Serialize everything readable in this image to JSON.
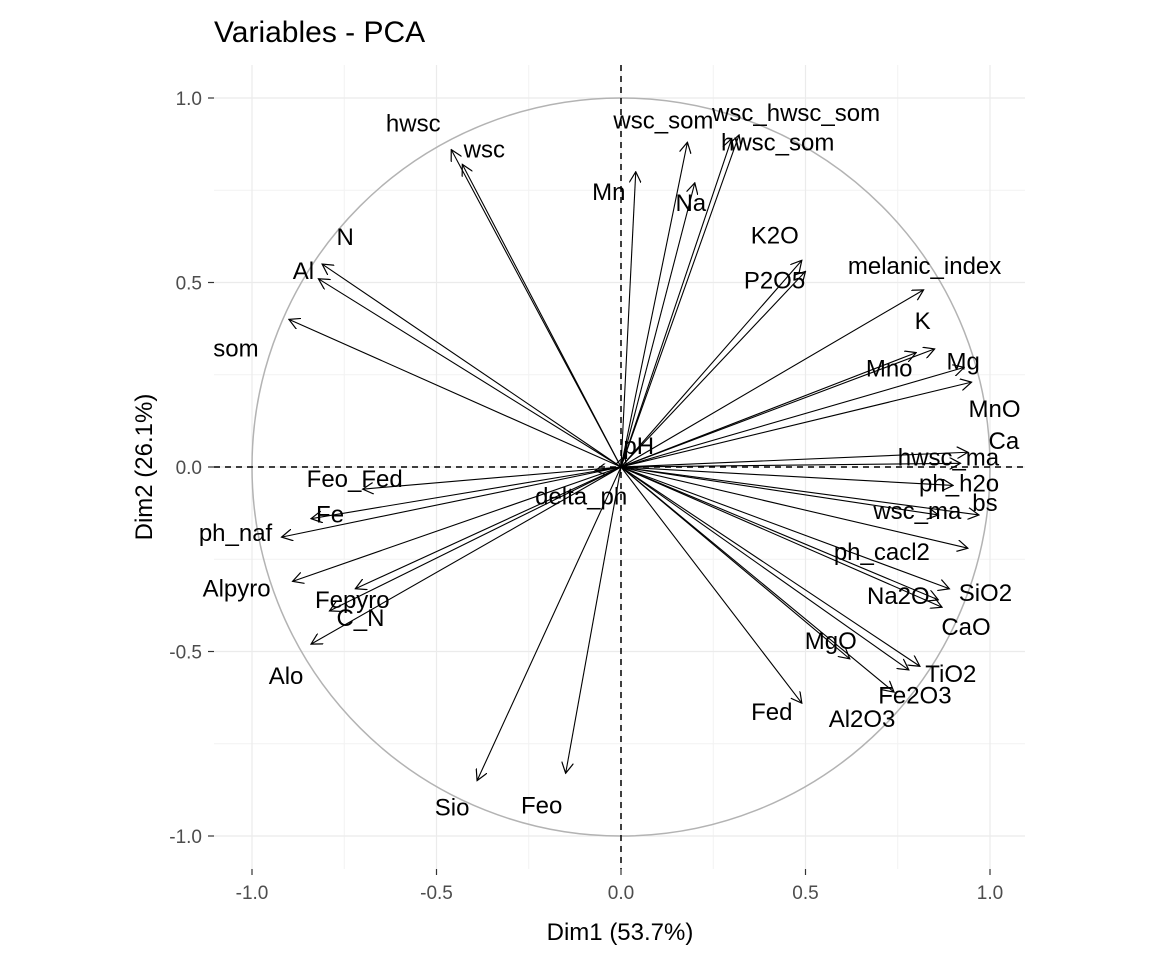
{
  "chart_data": {
    "type": "scatter",
    "title": "Variables - PCA",
    "xlabel": "Dim1 (53.7%)",
    "ylabel": "Dim2 (26.1%)",
    "xlim": [
      -1.0,
      1.0
    ],
    "ylim": [
      -1.0,
      1.0
    ],
    "x_ticks": [
      "-1.0",
      "-0.5",
      "0.0",
      "0.5",
      "1.0"
    ],
    "y_ticks": [
      "-1.0",
      "-0.5",
      "0.0",
      "0.5",
      "1.0"
    ],
    "grid": true,
    "correlation_circle": true,
    "reference_lines": "dashed at x=0 and y=0",
    "series": [
      {
        "values": [
          {
            "label": "hwsc",
            "x": -0.46,
            "y": 0.86
          },
          {
            "label": "wsc",
            "x": -0.43,
            "y": 0.82
          },
          {
            "label": "wsc_som",
            "x": 0.18,
            "y": 0.88
          },
          {
            "label": "Mn",
            "x": 0.04,
            "y": 0.8
          },
          {
            "label": "wsc_hwsc_som",
            "x": 0.32,
            "y": 0.9
          },
          {
            "label": "hwsc_som",
            "x": 0.3,
            "y": 0.89
          },
          {
            "label": "Na",
            "x": 0.2,
            "y": 0.77
          },
          {
            "label": "K2O",
            "x": 0.49,
            "y": 0.56
          },
          {
            "label": "P2O5",
            "x": 0.5,
            "y": 0.53
          },
          {
            "label": "melanic_index",
            "x": 0.82,
            "y": 0.48
          },
          {
            "label": "K",
            "x": 0.85,
            "y": 0.32
          },
          {
            "label": "Mg",
            "x": 0.93,
            "y": 0.27
          },
          {
            "label": "Mno",
            "x": 0.8,
            "y": 0.31
          },
          {
            "label": "MnO",
            "x": 0.95,
            "y": 0.23
          },
          {
            "label": "pH",
            "x": 0.01,
            "y": 0.03
          },
          {
            "label": "hwsc_ma",
            "x": 0.92,
            "y": 0.01
          },
          {
            "label": "Ca",
            "x": 0.94,
            "y": 0.04
          },
          {
            "label": "wsc_ma",
            "x": 0.86,
            "y": -0.13
          },
          {
            "label": "bs",
            "x": 0.97,
            "y": -0.13
          },
          {
            "label": "ph_h2o",
            "x": 0.9,
            "y": -0.05
          },
          {
            "label": "ph_cacl2",
            "x": 0.94,
            "y": -0.22
          },
          {
            "label": "SiO2",
            "x": 0.89,
            "y": -0.33
          },
          {
            "label": "Na2O",
            "x": 0.86,
            "y": -0.36
          },
          {
            "label": "CaO",
            "x": 0.87,
            "y": -0.38
          },
          {
            "label": "MgO",
            "x": 0.62,
            "y": -0.52
          },
          {
            "label": "TiO2",
            "x": 0.78,
            "y": -0.55
          },
          {
            "label": "Fed",
            "x": 0.49,
            "y": -0.64
          },
          {
            "label": "Fe2O3",
            "x": 0.81,
            "y": -0.54
          },
          {
            "label": "Al2O3",
            "x": 0.74,
            "y": -0.61
          },
          {
            "label": "N",
            "x": -0.81,
            "y": 0.55
          },
          {
            "label": "Al",
            "x": -0.82,
            "y": 0.51
          },
          {
            "label": "som",
            "x": -0.9,
            "y": 0.4
          },
          {
            "label": "Feo_Fed",
            "x": -0.7,
            "y": -0.06
          },
          {
            "label": "Fe",
            "x": -0.84,
            "y": -0.14
          },
          {
            "label": "delta_ph",
            "x": -0.07,
            "y": -0.01
          },
          {
            "label": "ph_naf",
            "x": -0.92,
            "y": -0.19
          },
          {
            "label": "Fepyro",
            "x": -0.72,
            "y": -0.33
          },
          {
            "label": "Alpyro",
            "x": -0.89,
            "y": -0.31
          },
          {
            "label": "C_N",
            "x": -0.79,
            "y": -0.39
          },
          {
            "label": "Alo",
            "x": -0.84,
            "y": -0.48
          },
          {
            "label": "Sio",
            "x": -0.39,
            "y": -0.85
          },
          {
            "label": "Feo",
            "x": -0.15,
            "y": -0.83
          }
        ]
      }
    ]
  }
}
